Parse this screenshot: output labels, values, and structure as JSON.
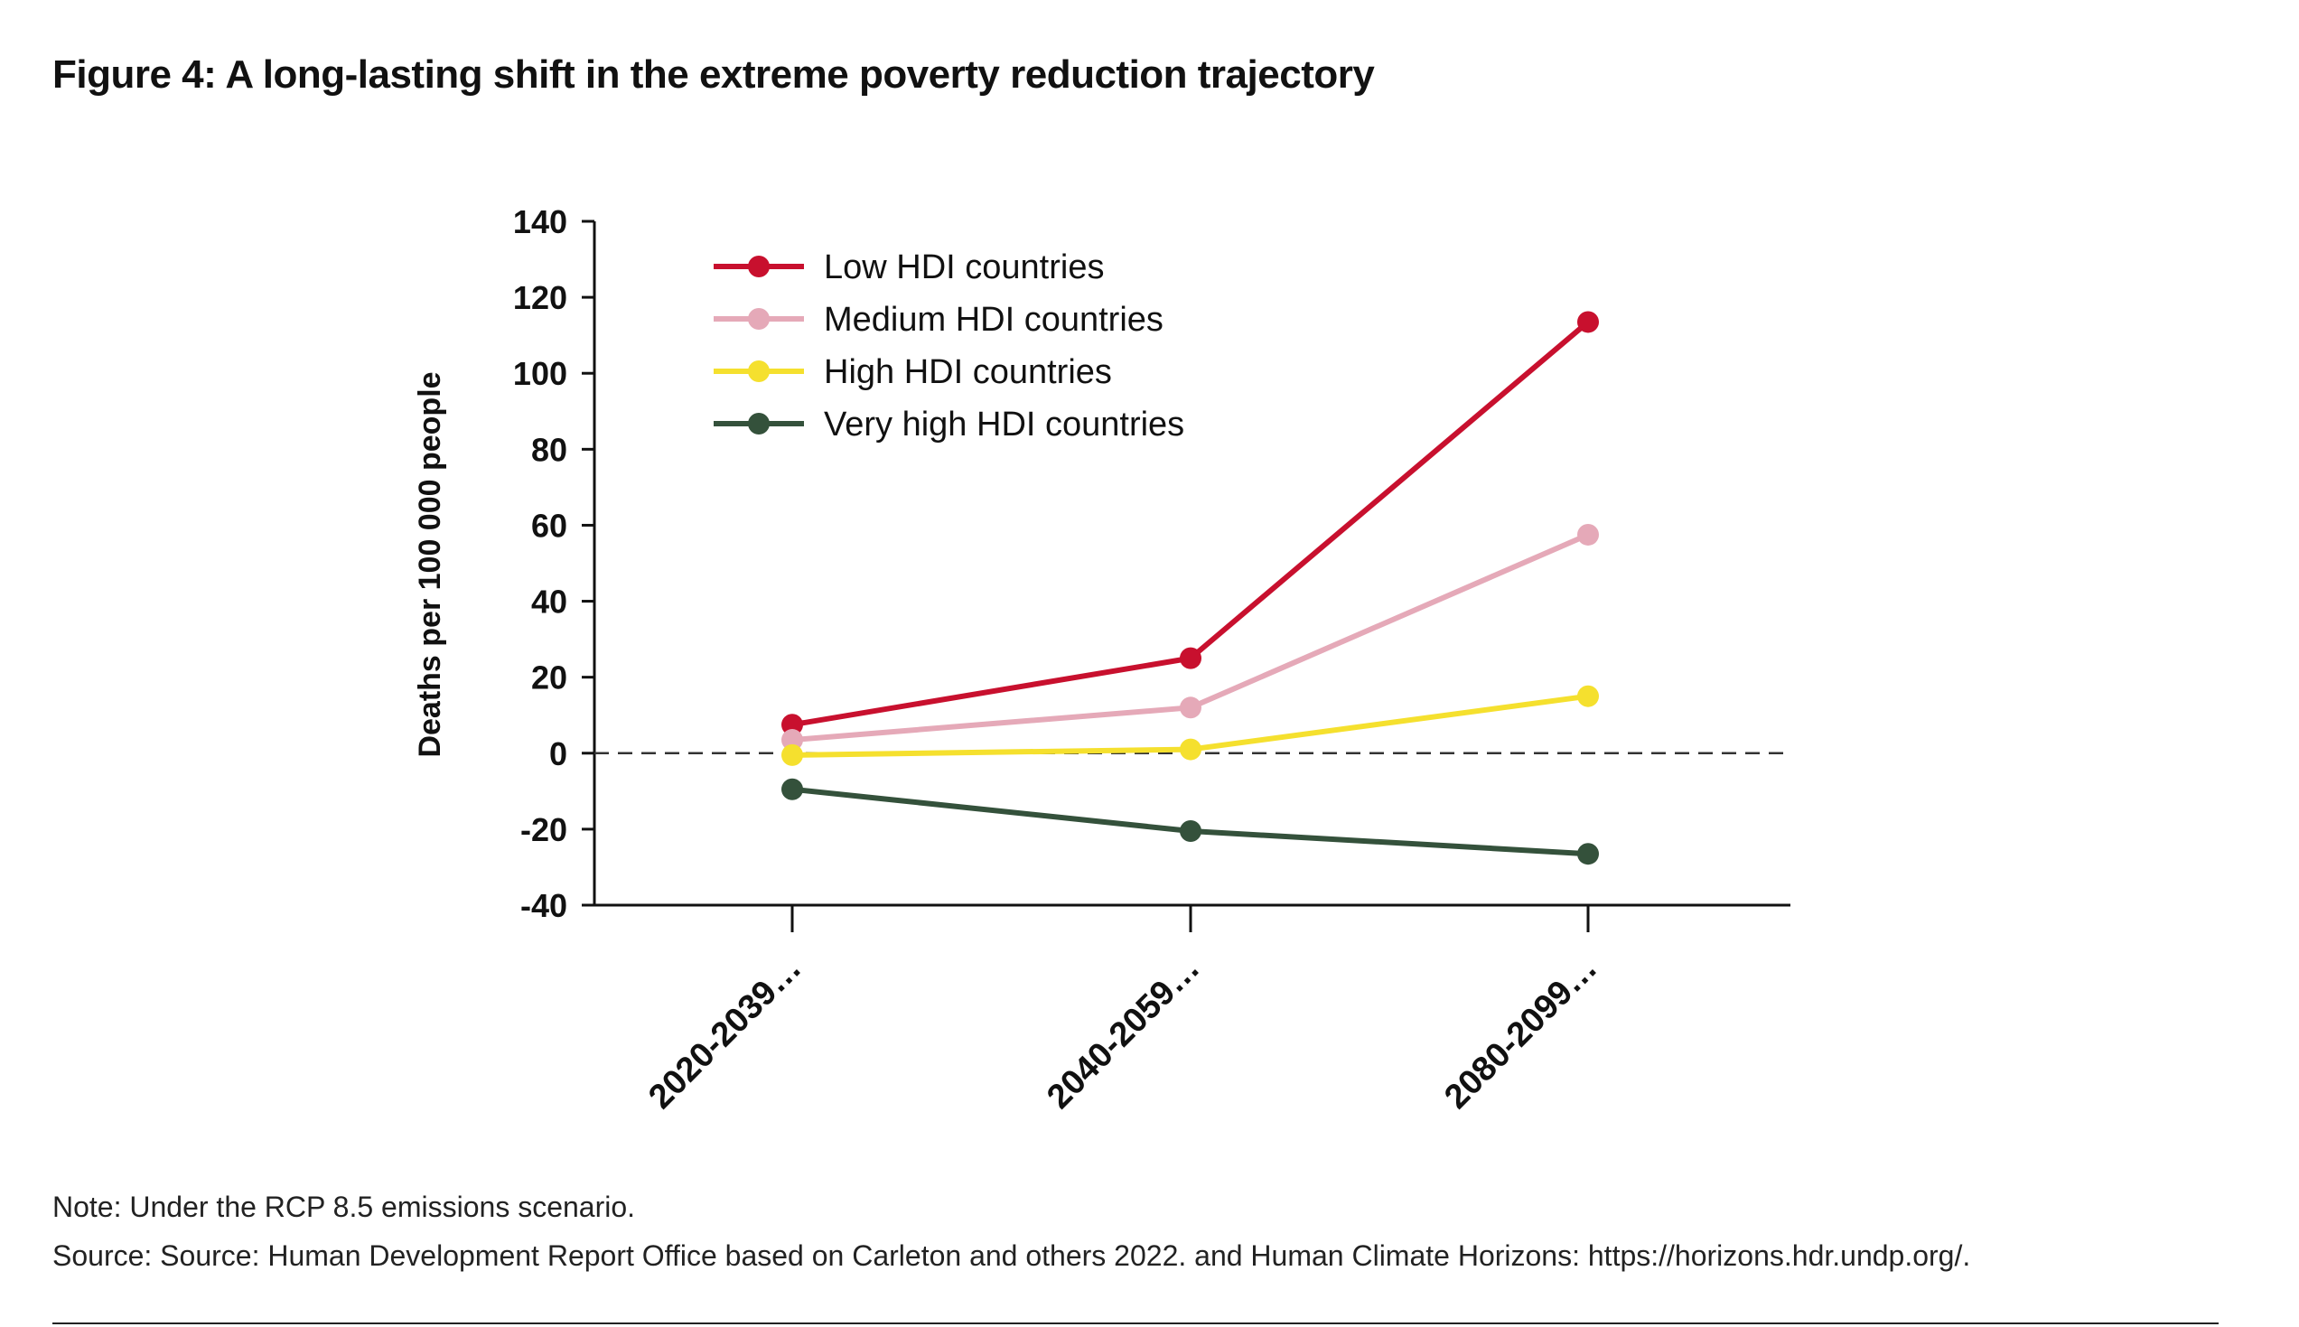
{
  "figure": {
    "title": "Figure 4: A long-lasting shift in the extreme poverty reduction trajectory",
    "note": "Note: Under the RCP 8.5 emissions scenario.",
    "source": "Source: Source: Human Development Report Office based on Carleton and others 2022. and Human Climate Horizons: https://horizons.hdr.undp.org/."
  },
  "chart_data": {
    "type": "line",
    "title": "",
    "xlabel": "",
    "ylabel": "Deaths per 100 000 people",
    "ylim": [
      -40,
      140
    ],
    "yticks": [
      140,
      120,
      100,
      80,
      60,
      40,
      20,
      0,
      -20,
      -40
    ],
    "yticklabels": [
      "140",
      "120",
      "100",
      "80",
      "60",
      "40",
      "20",
      "0",
      "-20",
      "-40"
    ],
    "categories": [
      "2020-2039…",
      "2040-2059…",
      "2080-2099…"
    ],
    "reference_line": {
      "y": 0,
      "style": "dashed"
    },
    "grid": false,
    "legend_position": "top-left",
    "series": [
      {
        "name": "Low HDI countries",
        "color": "#C8102E",
        "values": [
          7.5,
          25,
          113.5
        ]
      },
      {
        "name": "Medium HDI countries",
        "color": "#E5A9B8",
        "values": [
          3.5,
          12,
          57.5
        ]
      },
      {
        "name": "High HDI countries",
        "color": "#F5E02E",
        "values": [
          -0.5,
          1,
          15
        ]
      },
      {
        "name": "Very high HDI countries",
        "color": "#34513B",
        "values": [
          -9.5,
          -20.5,
          -26.5
        ]
      }
    ]
  }
}
